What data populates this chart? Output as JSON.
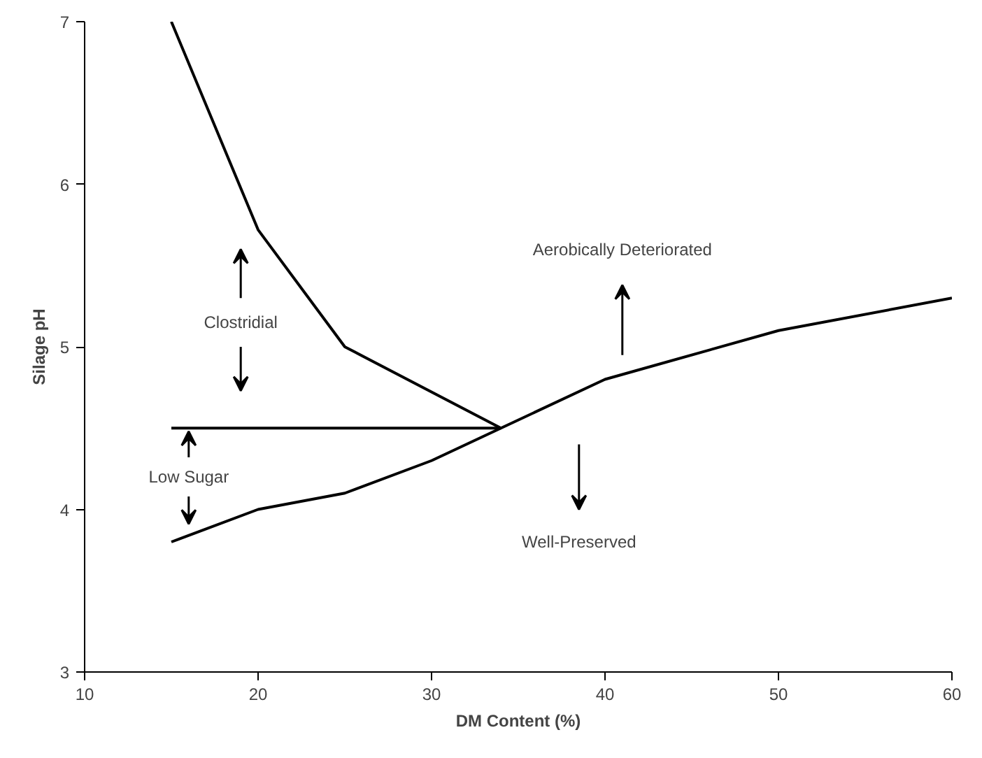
{
  "chart_data": {
    "type": "line",
    "xlabel": "DM Content (%)",
    "ylabel": "Silage pH",
    "xlim": [
      10,
      60
    ],
    "ylim": [
      3,
      7
    ],
    "xticks": [
      10,
      20,
      30,
      40,
      50,
      60
    ],
    "yticks": [
      3,
      4,
      5,
      6,
      7
    ],
    "grid": false,
    "marker": "none",
    "line_style": "solid",
    "series": [
      {
        "color": "#000000",
        "x": [
          15,
          20,
          25,
          34
        ],
        "values": [
          7.0,
          5.72,
          5.0,
          4.5
        ]
      },
      {
        "color": "#000000",
        "x": [
          15,
          34
        ],
        "values": [
          4.5,
          4.5
        ]
      },
      {
        "color": "#000000",
        "x": [
          15,
          20,
          25,
          30,
          34,
          40,
          50,
          60
        ],
        "values": [
          3.8,
          4.0,
          4.1,
          4.3,
          4.5,
          4.8,
          5.1,
          5.3
        ]
      }
    ],
    "annotations": [
      "Clostridial",
      "Low Sugar",
      "Aerobically Deteriorated",
      "Well-Preserved"
    ]
  }
}
